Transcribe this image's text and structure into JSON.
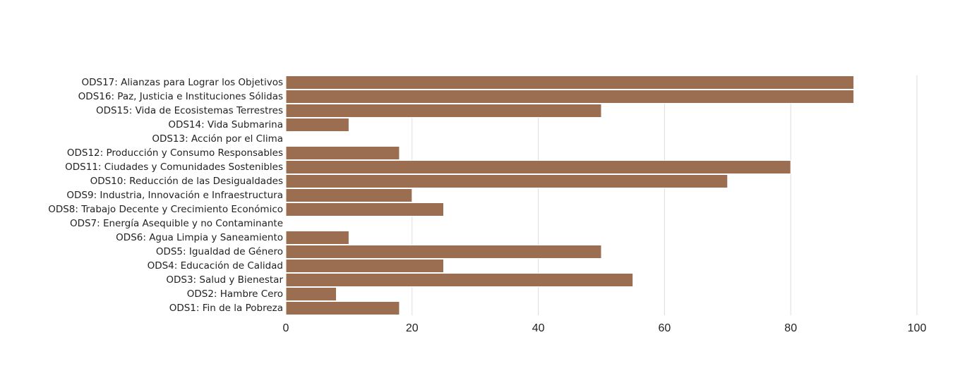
{
  "chart_data": {
    "type": "bar",
    "orientation": "horizontal",
    "categories": [
      "ODS1: Fin de la Pobreza",
      "ODS2: Hambre Cero",
      "ODS3: Salud y Bienestar",
      "ODS4: Educación de Calidad",
      "ODS5: Igualdad de Género",
      "ODS6: Agua Limpia y Saneamiento",
      "ODS7: Energía Asequible y no Contaminante",
      "ODS8: Trabajo Decente y Crecimiento Económico",
      "ODS9: Industria, Innovación e Infraestructura",
      "ODS10: Reducción de las Desigualdades",
      "ODS11: Ciudades y Comunidades Sostenibles",
      "ODS12: Producción y Consumo Responsables",
      "ODS13: Acción por el Clima",
      "ODS14: Vida Submarina",
      "ODS15: Vida de Ecosistemas Terrestres",
      "ODS16: Paz, Justicia e Instituciones Sólidas",
      "ODS17: Alianzas para Lograr los Objetivos"
    ],
    "values": [
      18,
      8,
      55,
      25,
      50,
      10,
      0,
      25,
      20,
      70,
      80,
      18,
      0,
      10,
      50,
      90,
      90
    ],
    "title": "",
    "xlabel": "",
    "ylabel": "",
    "xlim": [
      0,
      100
    ],
    "x_ticks": [
      "0",
      "20",
      "40",
      "60",
      "80",
      "100"
    ],
    "grid": "vertical",
    "bar_color": "#9b6e52",
    "gridline_color": "#dddddd"
  }
}
